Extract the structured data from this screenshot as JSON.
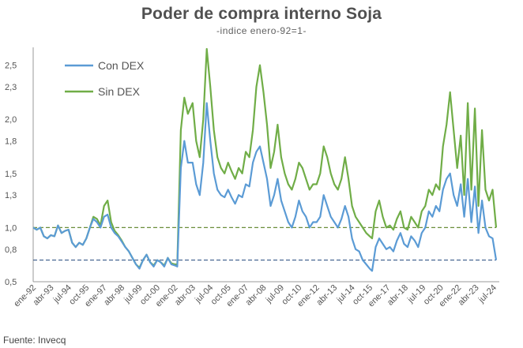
{
  "chart_data": {
    "type": "line",
    "title": "Poder de compra interno Soja",
    "subtitle": "-indice enero-92=1-",
    "source": "Fuente: Invecq",
    "xlabel": "",
    "ylabel": "",
    "ylim": [
      0.5,
      2.65
    ],
    "y_ticks": [
      "0,5",
      "0,8",
      "1,0",
      "1,3",
      "1,5",
      "1,8",
      "2,0",
      "2,3",
      "2,5"
    ],
    "x_ticks": [
      "ene-92",
      "abr-93",
      "jul-94",
      "oct-95",
      "ene-97",
      "abr-98",
      "jul-99",
      "oct-00",
      "ene-02",
      "abr-03",
      "jul-04",
      "oct-05",
      "ene-07",
      "abr-08",
      "jul-09",
      "oct-10",
      "ene-12",
      "abr-13",
      "jul-14",
      "oct-15",
      "ene-17",
      "abr-18",
      "jul-19",
      "oct-20",
      "ene-22",
      "abr-23",
      "jul-24"
    ],
    "x_range": [
      "1992-01",
      "2024-09"
    ],
    "reference_lines": [
      1.0,
      0.7
    ],
    "legend_position": "top-left",
    "colors": {
      "con_dex": "#5b9bd5",
      "sin_dex": "#70ad47",
      "ref_upper": "#6b8e3a",
      "ref_lower": "#3a5a8a",
      "axis": "#999999"
    },
    "series": [
      {
        "name": "Con DEX",
        "color": "#5b9bd5",
        "points": [
          [
            "1992-01",
            1.0
          ],
          [
            "1992-04",
            0.98
          ],
          [
            "1992-07",
            1.0
          ],
          [
            "1992-10",
            0.92
          ],
          [
            "1993-01",
            0.9
          ],
          [
            "1993-04",
            0.93
          ],
          [
            "1993-07",
            0.92
          ],
          [
            "1993-10",
            1.02
          ],
          [
            "1994-01",
            0.95
          ],
          [
            "1994-04",
            0.97
          ],
          [
            "1994-07",
            0.98
          ],
          [
            "1994-10",
            0.86
          ],
          [
            "1995-01",
            0.82
          ],
          [
            "1995-04",
            0.86
          ],
          [
            "1995-07",
            0.84
          ],
          [
            "1995-10",
            0.9
          ],
          [
            "1996-01",
            1.0
          ],
          [
            "1996-04",
            1.08
          ],
          [
            "1996-07",
            1.05
          ],
          [
            "1996-10",
            1.0
          ],
          [
            "1997-01",
            1.1
          ],
          [
            "1997-04",
            1.12
          ],
          [
            "1997-07",
            1.0
          ],
          [
            "1997-10",
            0.95
          ],
          [
            "1998-01",
            0.92
          ],
          [
            "1998-04",
            0.87
          ],
          [
            "1998-07",
            0.82
          ],
          [
            "1998-10",
            0.78
          ],
          [
            "1999-01",
            0.72
          ],
          [
            "1999-04",
            0.66
          ],
          [
            "1999-07",
            0.62
          ],
          [
            "1999-10",
            0.7
          ],
          [
            "2000-01",
            0.75
          ],
          [
            "2000-04",
            0.68
          ],
          [
            "2000-07",
            0.64
          ],
          [
            "2000-10",
            0.7
          ],
          [
            "2001-01",
            0.68
          ],
          [
            "2001-04",
            0.64
          ],
          [
            "2001-07",
            0.72
          ],
          [
            "2001-10",
            0.66
          ],
          [
            "2002-01",
            0.65
          ],
          [
            "2002-03",
            0.64
          ],
          [
            "2002-06",
            1.55
          ],
          [
            "2002-09",
            1.8
          ],
          [
            "2002-12",
            1.6
          ],
          [
            "2003-04",
            1.6
          ],
          [
            "2003-07",
            1.4
          ],
          [
            "2003-10",
            1.3
          ],
          [
            "2004-01",
            1.6
          ],
          [
            "2004-04",
            2.15
          ],
          [
            "2004-07",
            1.8
          ],
          [
            "2004-10",
            1.5
          ],
          [
            "2005-01",
            1.35
          ],
          [
            "2005-04",
            1.3
          ],
          [
            "2005-07",
            1.28
          ],
          [
            "2005-10",
            1.35
          ],
          [
            "2006-01",
            1.28
          ],
          [
            "2006-04",
            1.22
          ],
          [
            "2006-07",
            1.3
          ],
          [
            "2006-10",
            1.28
          ],
          [
            "2007-01",
            1.4
          ],
          [
            "2007-04",
            1.38
          ],
          [
            "2007-07",
            1.6
          ],
          [
            "2007-10",
            1.7
          ],
          [
            "2008-01",
            1.75
          ],
          [
            "2008-04",
            1.6
          ],
          [
            "2008-07",
            1.45
          ],
          [
            "2008-10",
            1.2
          ],
          [
            "2009-01",
            1.3
          ],
          [
            "2009-04",
            1.45
          ],
          [
            "2009-07",
            1.25
          ],
          [
            "2009-10",
            1.15
          ],
          [
            "2010-01",
            1.05
          ],
          [
            "2010-04",
            1.0
          ],
          [
            "2010-07",
            1.1
          ],
          [
            "2010-10",
            1.25
          ],
          [
            "2011-01",
            1.15
          ],
          [
            "2011-04",
            1.1
          ],
          [
            "2011-07",
            1.0
          ],
          [
            "2011-10",
            1.05
          ],
          [
            "2012-01",
            1.05
          ],
          [
            "2012-04",
            1.1
          ],
          [
            "2012-07",
            1.3
          ],
          [
            "2012-10",
            1.2
          ],
          [
            "2013-01",
            1.1
          ],
          [
            "2013-04",
            1.05
          ],
          [
            "2013-07",
            1.0
          ],
          [
            "2013-10",
            1.08
          ],
          [
            "2014-01",
            1.2
          ],
          [
            "2014-04",
            1.1
          ],
          [
            "2014-07",
            0.9
          ],
          [
            "2014-10",
            0.8
          ],
          [
            "2015-01",
            0.78
          ],
          [
            "2015-04",
            0.7
          ],
          [
            "2015-07",
            0.66
          ],
          [
            "2015-10",
            0.62
          ],
          [
            "2015-12",
            0.6
          ],
          [
            "2016-03",
            0.82
          ],
          [
            "2016-06",
            0.9
          ],
          [
            "2016-09",
            0.85
          ],
          [
            "2016-12",
            0.8
          ],
          [
            "2017-03",
            0.82
          ],
          [
            "2017-06",
            0.78
          ],
          [
            "2017-09",
            0.88
          ],
          [
            "2017-12",
            0.95
          ],
          [
            "2018-03",
            0.85
          ],
          [
            "2018-06",
            0.82
          ],
          [
            "2018-09",
            0.92
          ],
          [
            "2018-12",
            0.88
          ],
          [
            "2019-03",
            0.82
          ],
          [
            "2019-06",
            0.95
          ],
          [
            "2019-09",
            1.0
          ],
          [
            "2019-12",
            1.15
          ],
          [
            "2020-03",
            1.1
          ],
          [
            "2020-06",
            1.2
          ],
          [
            "2020-09",
            1.15
          ],
          [
            "2020-12",
            1.35
          ],
          [
            "2021-03",
            1.45
          ],
          [
            "2021-06",
            1.5
          ],
          [
            "2021-09",
            1.3
          ],
          [
            "2021-12",
            1.2
          ],
          [
            "2022-03",
            1.4
          ],
          [
            "2022-06",
            1.1
          ],
          [
            "2022-09",
            1.45
          ],
          [
            "2022-12",
            1.05
          ],
          [
            "2023-03",
            1.38
          ],
          [
            "2023-06",
            0.95
          ],
          [
            "2023-09",
            1.25
          ],
          [
            "2023-12",
            1.0
          ],
          [
            "2024-03",
            0.92
          ],
          [
            "2024-06",
            0.9
          ],
          [
            "2024-09",
            0.7
          ]
        ]
      },
      {
        "name": "Sin DEX",
        "color": "#70ad47",
        "points": [
          [
            "1992-01",
            1.0
          ],
          [
            "1992-04",
            0.98
          ],
          [
            "1992-07",
            1.0
          ],
          [
            "1992-10",
            0.92
          ],
          [
            "1993-01",
            0.9
          ],
          [
            "1993-04",
            0.93
          ],
          [
            "1993-07",
            0.92
          ],
          [
            "1993-10",
            1.02
          ],
          [
            "1994-01",
            0.95
          ],
          [
            "1994-04",
            0.97
          ],
          [
            "1994-07",
            0.98
          ],
          [
            "1994-10",
            0.86
          ],
          [
            "1995-01",
            0.82
          ],
          [
            "1995-04",
            0.86
          ],
          [
            "1995-07",
            0.84
          ],
          [
            "1995-10",
            0.9
          ],
          [
            "1996-01",
            1.0
          ],
          [
            "1996-04",
            1.1
          ],
          [
            "1996-07",
            1.08
          ],
          [
            "1996-10",
            1.02
          ],
          [
            "1997-01",
            1.2
          ],
          [
            "1997-04",
            1.25
          ],
          [
            "1997-07",
            1.05
          ],
          [
            "1997-10",
            0.97
          ],
          [
            "1998-01",
            0.93
          ],
          [
            "1998-04",
            0.88
          ],
          [
            "1998-07",
            0.82
          ],
          [
            "1998-10",
            0.78
          ],
          [
            "1999-01",
            0.72
          ],
          [
            "1999-04",
            0.66
          ],
          [
            "1999-07",
            0.63
          ],
          [
            "1999-10",
            0.7
          ],
          [
            "2000-01",
            0.75
          ],
          [
            "2000-04",
            0.68
          ],
          [
            "2000-07",
            0.65
          ],
          [
            "2000-10",
            0.7
          ],
          [
            "2001-01",
            0.68
          ],
          [
            "2001-04",
            0.65
          ],
          [
            "2001-07",
            0.72
          ],
          [
            "2001-10",
            0.67
          ],
          [
            "2002-01",
            0.66
          ],
          [
            "2002-03",
            0.66
          ],
          [
            "2002-06",
            1.9
          ],
          [
            "2002-09",
            2.2
          ],
          [
            "2002-12",
            2.05
          ],
          [
            "2003-04",
            2.15
          ],
          [
            "2003-07",
            1.8
          ],
          [
            "2003-10",
            1.65
          ],
          [
            "2004-01",
            2.0
          ],
          [
            "2004-04",
            2.65
          ],
          [
            "2004-07",
            2.3
          ],
          [
            "2004-10",
            1.9
          ],
          [
            "2005-01",
            1.65
          ],
          [
            "2005-04",
            1.55
          ],
          [
            "2005-07",
            1.5
          ],
          [
            "2005-10",
            1.6
          ],
          [
            "2006-01",
            1.52
          ],
          [
            "2006-04",
            1.45
          ],
          [
            "2006-07",
            1.55
          ],
          [
            "2006-10",
            1.5
          ],
          [
            "2007-01",
            1.7
          ],
          [
            "2007-04",
            1.65
          ],
          [
            "2007-07",
            1.9
          ],
          [
            "2007-10",
            2.3
          ],
          [
            "2008-01",
            2.5
          ],
          [
            "2008-04",
            2.25
          ],
          [
            "2008-07",
            1.95
          ],
          [
            "2008-10",
            1.55
          ],
          [
            "2009-01",
            1.7
          ],
          [
            "2009-04",
            1.95
          ],
          [
            "2009-07",
            1.65
          ],
          [
            "2009-10",
            1.5
          ],
          [
            "2010-01",
            1.4
          ],
          [
            "2010-04",
            1.35
          ],
          [
            "2010-07",
            1.45
          ],
          [
            "2010-10",
            1.6
          ],
          [
            "2011-01",
            1.55
          ],
          [
            "2011-04",
            1.45
          ],
          [
            "2011-07",
            1.35
          ],
          [
            "2011-10",
            1.4
          ],
          [
            "2012-01",
            1.4
          ],
          [
            "2012-04",
            1.5
          ],
          [
            "2012-07",
            1.75
          ],
          [
            "2012-10",
            1.65
          ],
          [
            "2013-01",
            1.5
          ],
          [
            "2013-04",
            1.4
          ],
          [
            "2013-07",
            1.35
          ],
          [
            "2013-10",
            1.45
          ],
          [
            "2014-01",
            1.65
          ],
          [
            "2014-04",
            1.45
          ],
          [
            "2014-07",
            1.2
          ],
          [
            "2014-10",
            1.1
          ],
          [
            "2015-01",
            1.05
          ],
          [
            "2015-04",
            1.0
          ],
          [
            "2015-07",
            0.95
          ],
          [
            "2015-10",
            0.92
          ],
          [
            "2015-12",
            0.9
          ],
          [
            "2016-03",
            1.15
          ],
          [
            "2016-06",
            1.25
          ],
          [
            "2016-09",
            1.1
          ],
          [
            "2016-12",
            1.0
          ],
          [
            "2017-03",
            1.02
          ],
          [
            "2017-06",
            0.98
          ],
          [
            "2017-09",
            1.08
          ],
          [
            "2017-12",
            1.15
          ],
          [
            "2018-03",
            1.0
          ],
          [
            "2018-06",
            0.98
          ],
          [
            "2018-09",
            1.1
          ],
          [
            "2018-12",
            1.05
          ],
          [
            "2019-03",
            1.0
          ],
          [
            "2019-06",
            1.15
          ],
          [
            "2019-09",
            1.2
          ],
          [
            "2019-12",
            1.35
          ],
          [
            "2020-03",
            1.3
          ],
          [
            "2020-06",
            1.4
          ],
          [
            "2020-09",
            1.35
          ],
          [
            "2020-12",
            1.75
          ],
          [
            "2021-03",
            1.95
          ],
          [
            "2021-06",
            2.25
          ],
          [
            "2021-09",
            1.9
          ],
          [
            "2021-12",
            1.55
          ],
          [
            "2022-03",
            1.85
          ],
          [
            "2022-06",
            1.3
          ],
          [
            "2022-09",
            2.15
          ],
          [
            "2022-12",
            1.35
          ],
          [
            "2023-03",
            2.1
          ],
          [
            "2023-06",
            1.2
          ],
          [
            "2023-09",
            1.9
          ],
          [
            "2023-12",
            1.35
          ],
          [
            "2024-03",
            1.25
          ],
          [
            "2024-06",
            1.35
          ],
          [
            "2024-09",
            1.0
          ]
        ]
      }
    ]
  }
}
